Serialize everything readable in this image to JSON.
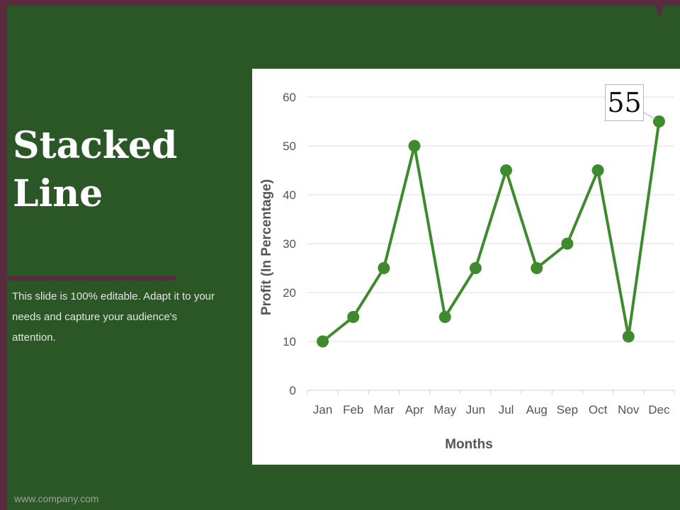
{
  "slide": {
    "title_line1": "Stacked",
    "title_line2": "Line",
    "description": "This slide is 100% editable. Adapt it to your needs and capture your audience's attention.",
    "footer_url": "www.company.com"
  },
  "colors": {
    "background": "#2b5726",
    "accent": "#5a2a3f",
    "series": "#3e8a2c"
  },
  "chart_data": {
    "type": "line",
    "categories": [
      "Jan",
      "Feb",
      "Mar",
      "Apr",
      "May",
      "Jun",
      "Jul",
      "Aug",
      "Sep",
      "Oct",
      "Nov",
      "Dec"
    ],
    "series": [
      {
        "values": [
          10,
          15,
          25,
          50,
          15,
          25,
          45,
          25,
          30,
          45,
          11,
          55
        ]
      }
    ],
    "xlabel": "Months",
    "ylabel": "Profit  (In Percentage)",
    "ylim": [
      0,
      60
    ],
    "yticks": [
      0,
      10,
      20,
      30,
      40,
      50,
      60
    ],
    "grid": true,
    "annotations": [
      {
        "category": "Dec",
        "text": "55"
      }
    ]
  }
}
